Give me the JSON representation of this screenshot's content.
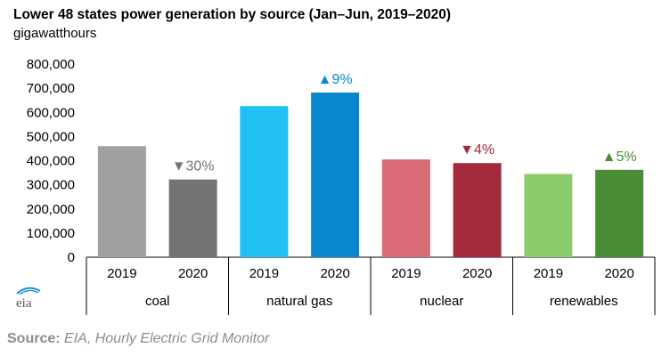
{
  "title": "Lower 48 states power generation by source (Jan–Jun, 2019–2020)",
  "subtitle": "gigawatthours",
  "logo_text": "eia",
  "source": {
    "label": "Source:",
    "text": "EIA, Hourly Electric Grid Monitor"
  },
  "chart_data": {
    "type": "bar",
    "title": "Lower 48 states power generation by source (Jan–Jun, 2019–2020)",
    "ylabel": "gigawatthours",
    "ylim": [
      0,
      800000
    ],
    "yticks": [
      0,
      100000,
      200000,
      300000,
      400000,
      500000,
      600000,
      700000,
      800000
    ],
    "ytick_labels": [
      "0",
      "100,000",
      "200,000",
      "300,000",
      "400,000",
      "500,000",
      "600,000",
      "700,000",
      "800,000"
    ],
    "grid": false,
    "legend": "none",
    "groups": [
      {
        "name": "coal",
        "categories": [
          "2019",
          "2020"
        ],
        "values": [
          460000,
          322000
        ],
        "colors": [
          "#a0a0a0",
          "#737373"
        ],
        "change_label": "▼30%",
        "change_color": "#737373"
      },
      {
        "name": "natural gas",
        "categories": [
          "2019",
          "2020"
        ],
        "values": [
          626000,
          682000
        ],
        "colors": [
          "#21c0f5",
          "#0a87cc"
        ],
        "change_label": "▲9%",
        "change_color": "#0a87cc"
      },
      {
        "name": "nuclear",
        "categories": [
          "2019",
          "2020"
        ],
        "values": [
          405000,
          390000
        ],
        "colors": [
          "#d96b76",
          "#a32a3a"
        ],
        "change_label": "▼4%",
        "change_color": "#a32a3a"
      },
      {
        "name": "renewables",
        "categories": [
          "2019",
          "2020"
        ],
        "values": [
          345000,
          362000
        ],
        "colors": [
          "#8ccc6c",
          "#4a8b35"
        ],
        "change_label": "▲5%",
        "change_color": "#4a8b35"
      }
    ]
  }
}
